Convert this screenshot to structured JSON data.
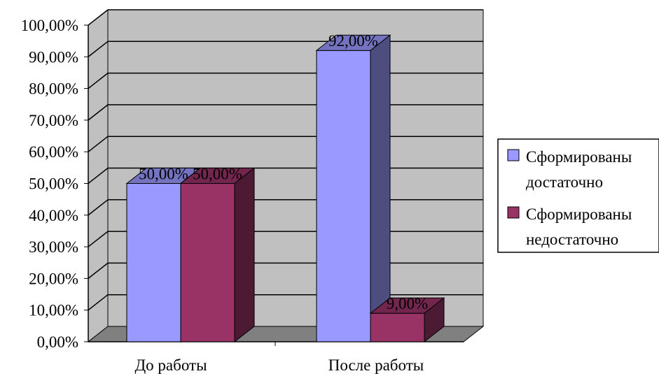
{
  "chart_data": {
    "type": "bar",
    "style": "3d-clustered-column",
    "categories": [
      "До работы",
      "После работы"
    ],
    "series": [
      {
        "name": "Сформированы достаточно",
        "values": [
          0.5,
          0.92
        ],
        "value_labels": [
          "50,00%",
          "92,00%"
        ],
        "color": "#9999ff"
      },
      {
        "name": "Сформированы недостаточно",
        "values": [
          0.5,
          0.09
        ],
        "value_labels": [
          "50,00%",
          "9,00%"
        ],
        "color": "#993366"
      }
    ],
    "ylim": [
      0,
      1
    ],
    "yticks": [
      0,
      0.1,
      0.2,
      0.3,
      0.4,
      0.5,
      0.6,
      0.7,
      0.8,
      0.9,
      1.0
    ],
    "ytick_labels": [
      "0,00%",
      "10,00%",
      "20,00%",
      "30,00%",
      "40,00%",
      "50,00%",
      "60,00%",
      "70,00%",
      "80,00%",
      "90,00%",
      "100,00%"
    ],
    "grid": true,
    "legend_position": "right",
    "wall_color": "#c0c0c0",
    "floor_color": "#808080"
  },
  "legend": {
    "items": [
      {
        "line1": "Сформированы",
        "line2": "достаточно",
        "color": "#9999ff"
      },
      {
        "line1": "Сформированы",
        "line2": "недостаточно",
        "color": "#993366"
      }
    ]
  }
}
